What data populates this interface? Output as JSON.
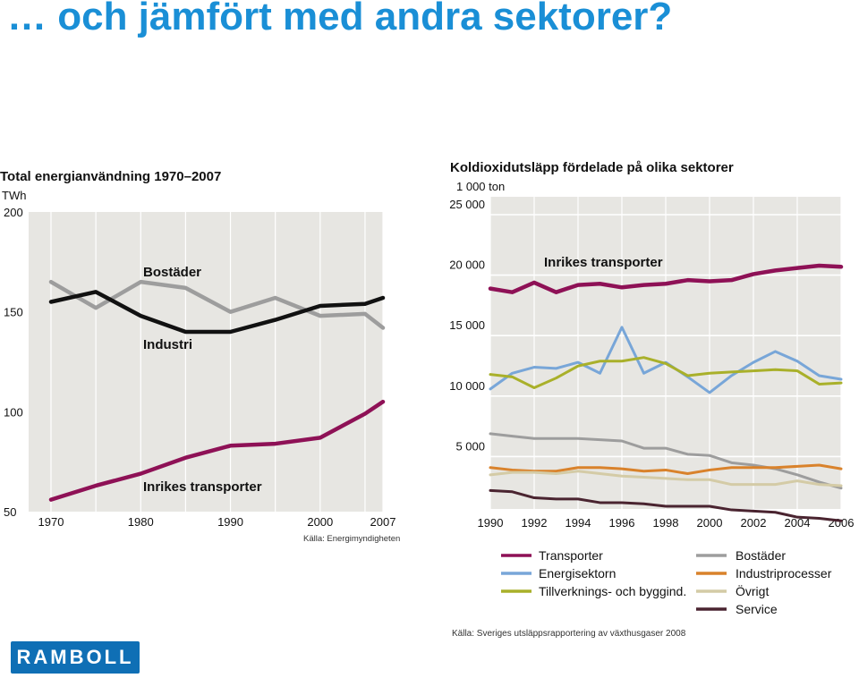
{
  "slide": {
    "title": "… och jämfört med andra sektorer?",
    "logo_text": "RAMBOLL"
  },
  "chart_data": [
    {
      "type": "line",
      "title": "Total energianvändning 1970–2007",
      "unit": "TWh",
      "x_ticks": [
        "1970",
        "1980",
        "1990",
        "2000",
        "2007"
      ],
      "y_ticks": [
        "50",
        "100",
        "150",
        "200"
      ],
      "ylim": [
        50,
        200
      ],
      "xlim": [
        1970,
        2007
      ],
      "grid": "vertical",
      "source": "Källa: Energimyndigheten",
      "series": [
        {
          "name": "Bostäder",
          "color": "#9d9d9d",
          "x": [
            1970,
            1975,
            1980,
            1985,
            1990,
            1995,
            2000,
            2005,
            2007
          ],
          "y": [
            165,
            152,
            165,
            162,
            150,
            157,
            148,
            149,
            142
          ]
        },
        {
          "name": "Industri",
          "color": "#111111",
          "x": [
            1970,
            1975,
            1980,
            1985,
            1990,
            1995,
            2000,
            2005,
            2007
          ],
          "y": [
            155,
            160,
            148,
            140,
            140,
            146,
            153,
            154,
            157
          ]
        },
        {
          "name": "Inrikes transporter",
          "color": "#8e1156",
          "x": [
            1970,
            1975,
            1980,
            1985,
            1990,
            1995,
            2000,
            2005,
            2007
          ],
          "y": [
            56,
            63,
            69,
            77,
            83,
            84,
            87,
            99,
            105
          ]
        }
      ]
    },
    {
      "type": "line",
      "title": "Koldioxidutsläpp fördelade på olika sektorer",
      "unit": "1 000 ton",
      "x_ticks": [
        "1990",
        "1992",
        "1994",
        "1996",
        "1998",
        "2000",
        "2002",
        "2004",
        "2006"
      ],
      "y_ticks": [
        "5 000",
        "10 000",
        "15 000",
        "20 000",
        "25 000"
      ],
      "ylim": [
        0,
        25000
      ],
      "xlim": [
        1990,
        2006
      ],
      "grid": "vertical",
      "annotation": "Inrikes transporter",
      "source": "Källa: Sveriges utsläppsrapportering av växthusgaser 2008",
      "x": [
        1990,
        1991,
        1992,
        1993,
        1994,
        1995,
        1996,
        1997,
        1998,
        1999,
        2000,
        2001,
        2002,
        2003,
        2004,
        2005,
        2006
      ],
      "series": [
        {
          "name": "Transporter",
          "color": "#8e1156",
          "y": [
            18000,
            17700,
            18500,
            17700,
            18300,
            18400,
            18100,
            18300,
            18400,
            18700,
            18600,
            18700,
            19200,
            19500,
            19700,
            19900,
            19800
          ]
        },
        {
          "name": "Energisektorn",
          "color": "#78a6d8",
          "y": [
            9700,
            11000,
            11500,
            11400,
            11900,
            11000,
            14800,
            11000,
            11900,
            10700,
            9400,
            10800,
            11900,
            12800,
            12000,
            10800,
            10500
          ]
        },
        {
          "name": "Tillverknings- och byggind.",
          "color": "#a9b02a",
          "y": [
            10900,
            10700,
            9800,
            10600,
            11600,
            12000,
            12000,
            12300,
            11800,
            10800,
            11000,
            11100,
            11200,
            11300,
            11200,
            10100,
            10200
          ]
        },
        {
          "name": "Bostäder",
          "color": "#9d9d9d",
          "y": [
            6000,
            5800,
            5600,
            5600,
            5600,
            5500,
            5400,
            4800,
            4800,
            4300,
            4200,
            3600,
            3400,
            3100,
            2600,
            2000,
            1500
          ]
        },
        {
          "name": "Industriprocesser",
          "color": "#d9822b",
          "y": [
            3200,
            3000,
            2900,
            2900,
            3200,
            3200,
            3100,
            2900,
            3000,
            2700,
            3000,
            3200,
            3200,
            3200,
            3300,
            3400,
            3100
          ]
        },
        {
          "name": "Övrigt",
          "color": "#d4cba6",
          "y": [
            2600,
            2800,
            2800,
            2700,
            2900,
            2700,
            2500,
            2400,
            2300,
            2200,
            2200,
            1800,
            1800,
            1800,
            2100,
            1800,
            1700
          ]
        },
        {
          "name": "Service",
          "color": "#4a2430",
          "y": [
            1300,
            1200,
            700,
            600,
            600,
            300,
            300,
            200,
            0,
            0,
            0,
            -300,
            -400,
            -500,
            -900,
            -1000,
            -1200
          ]
        }
      ]
    }
  ]
}
